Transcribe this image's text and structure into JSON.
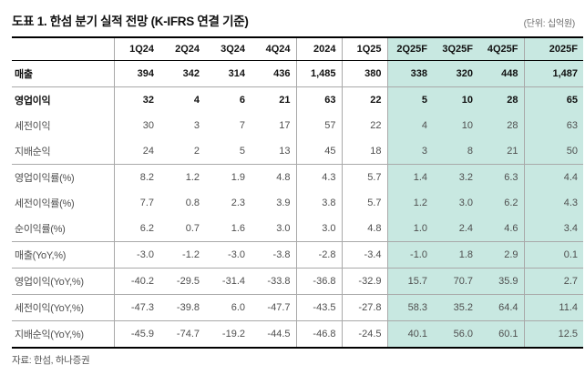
{
  "header": {
    "title": "도표 1. 한섬 분기 실적 전망 (K-IFRS 연결 기준)",
    "unit_label": "(단위: 십억원)"
  },
  "colors": {
    "highlight": "#c8e8e1",
    "grid_line": "#a9a9a9",
    "strong_line": "#000000"
  },
  "table": {
    "columns": [
      "1Q24",
      "2Q24",
      "3Q24",
      "4Q24",
      "2024",
      "1Q25",
      "2Q25F",
      "3Q25F",
      "4Q25F",
      "2025F"
    ],
    "highlighted_columns": [
      "2Q25F",
      "3Q25F",
      "4Q25F",
      "2025F"
    ],
    "rows": [
      {
        "label": "매출",
        "values": [
          "394",
          "342",
          "314",
          "436",
          "1,485",
          "380",
          "338",
          "320",
          "448",
          "1,487"
        ]
      },
      {
        "label": "영업이익",
        "values": [
          "32",
          "4",
          "6",
          "21",
          "63",
          "22",
          "5",
          "10",
          "28",
          "65"
        ]
      },
      {
        "label": "세전이익",
        "values": [
          "30",
          "3",
          "7",
          "17",
          "57",
          "22",
          "4",
          "10",
          "28",
          "63"
        ]
      },
      {
        "label": "지배순익",
        "values": [
          "24",
          "2",
          "5",
          "13",
          "45",
          "18",
          "3",
          "8",
          "21",
          "50"
        ]
      },
      {
        "label": "영업이익률(%)",
        "values": [
          "8.2",
          "1.2",
          "1.9",
          "4.8",
          "4.3",
          "5.7",
          "1.4",
          "3.2",
          "6.3",
          "4.4"
        ]
      },
      {
        "label": "세전이익률(%)",
        "values": [
          "7.7",
          "0.8",
          "2.3",
          "3.9",
          "3.8",
          "5.7",
          "1.2",
          "3.0",
          "6.2",
          "4.3"
        ]
      },
      {
        "label": "순이익률(%)",
        "values": [
          "6.2",
          "0.7",
          "1.6",
          "3.0",
          "3.0",
          "4.8",
          "1.0",
          "2.4",
          "4.6",
          "3.4"
        ]
      },
      {
        "label": "매출(YoY,%)",
        "values": [
          "-3.0",
          "-1.2",
          "-3.0",
          "-3.8",
          "-2.8",
          "-3.4",
          "-1.0",
          "1.8",
          "2.9",
          "0.1"
        ]
      },
      {
        "label": "영업이익(YoY,%)",
        "values": [
          "-40.2",
          "-29.5",
          "-31.4",
          "-33.8",
          "-36.8",
          "-32.9",
          "15.7",
          "70.7",
          "35.9",
          "2.7"
        ]
      },
      {
        "label": "세전이익(YoY,%)",
        "values": [
          "-47.3",
          "-39.8",
          "6.0",
          "-47.7",
          "-43.5",
          "-27.8",
          "58.3",
          "35.2",
          "64.4",
          "11.4"
        ]
      },
      {
        "label": "지배순익(YoY,%)",
        "values": [
          "-45.9",
          "-74.7",
          "-19.2",
          "-44.5",
          "-46.8",
          "-24.5",
          "40.1",
          "56.0",
          "60.1",
          "12.5"
        ]
      }
    ]
  },
  "footer": {
    "source": "자료: 한섬, 하나증권"
  }
}
